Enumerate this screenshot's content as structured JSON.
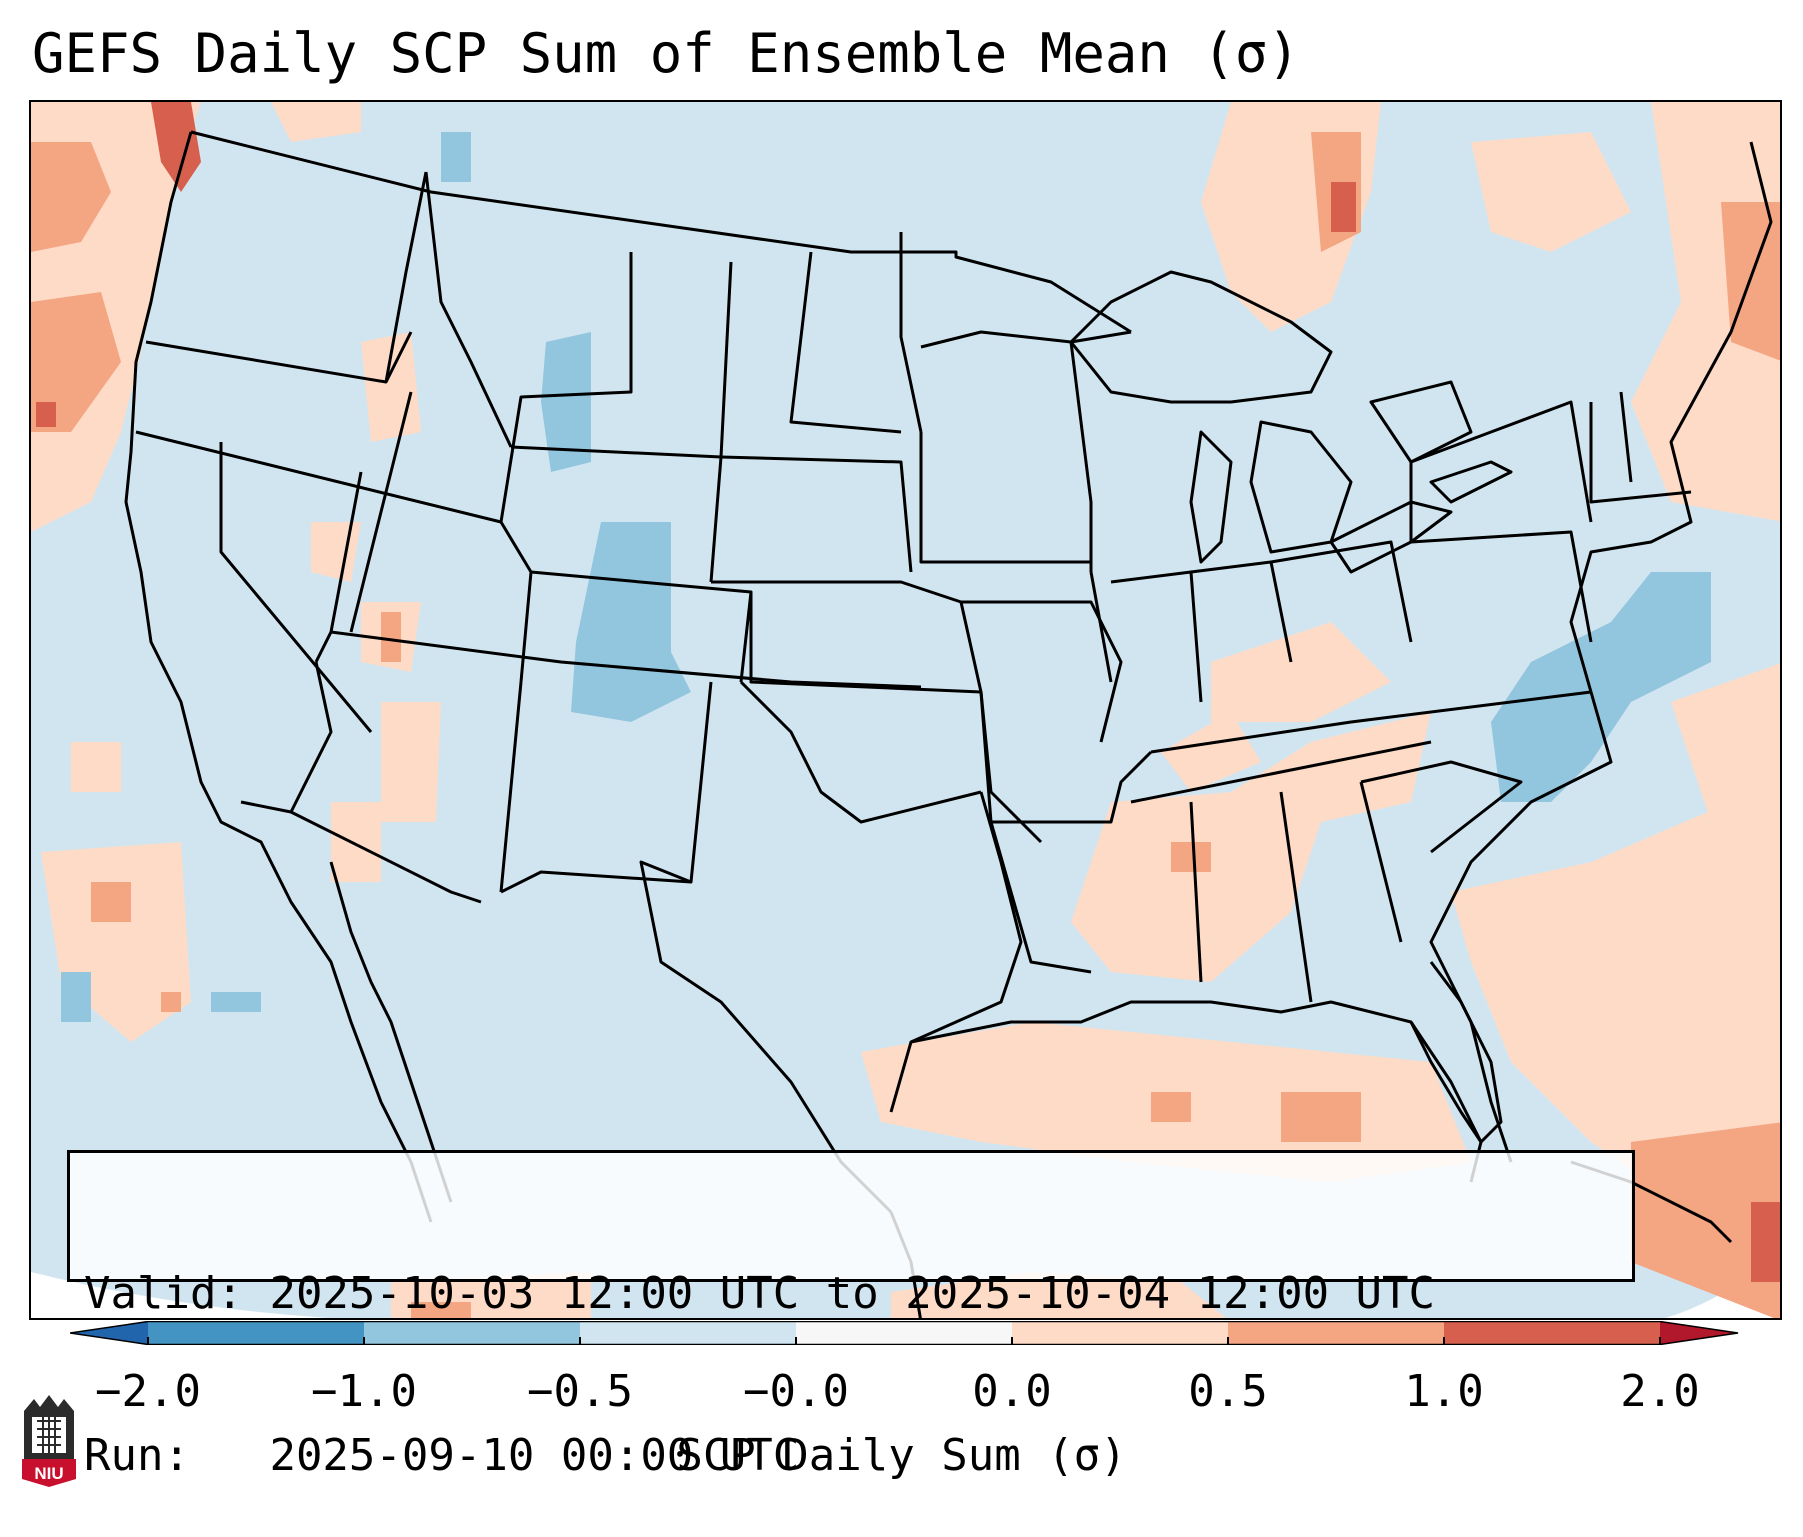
{
  "title": "GEFS Daily SCP Sum of Ensemble Mean (σ)",
  "info": {
    "valid_label": "Valid:",
    "valid_value": "2025-10-03 12:00 UTC to 2025-10-04 12:00 UTC",
    "run_label": "Run:",
    "run_value": "2025-09-10 00:00 UTC"
  },
  "colorbar": {
    "title": "SCP Daily Sum (σ)",
    "tick_labels": [
      "−2.0",
      "−1.0",
      "−0.5",
      "−0.0",
      "0.0",
      "0.5",
      "1.0",
      "2.0"
    ],
    "colors": [
      "#4393c3",
      "#92c5de",
      "#d1e5f0",
      "#f7f7f7",
      "#fddbc7",
      "#f4a582",
      "#d6604d"
    ],
    "extend_low_color": "#2166ac",
    "extend_high_color": "#b2182b"
  },
  "map": {
    "region": "Contiguous United States",
    "background_color": "#d1e5f0",
    "positive_color": "#fddbc7",
    "strong_positive_color": "#f4a582",
    "very_strong_positive_color": "#d6604d",
    "negative_color": "#92c5de"
  },
  "logo": {
    "text": "NIU"
  }
}
